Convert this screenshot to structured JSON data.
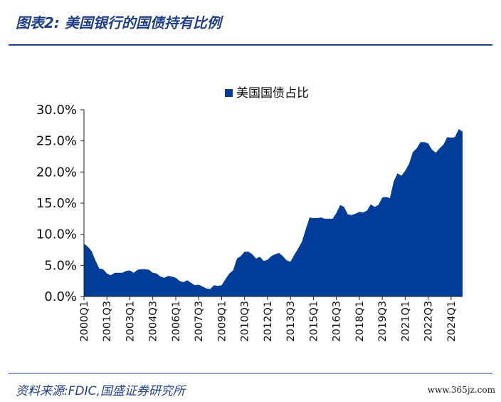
{
  "header": {
    "title": "图表2:  美国银行的国债持有比例"
  },
  "footer": {
    "source": "资料来源:FDIC,国盛证券研究所",
    "watermark": "www.365jz.com"
  },
  "colors": {
    "series": "#003d99",
    "accent": "#1f3f87"
  },
  "chart_data": {
    "type": "area",
    "title": "",
    "xlabel": "",
    "ylabel": "",
    "ylim": [
      0,
      30
    ],
    "y_format": "percent_1dp",
    "y_ticks": [
      "0.0%",
      "5.0%",
      "10.0%",
      "15.0%",
      "20.0%",
      "25.0%",
      "30.0%"
    ],
    "legend": "top-center",
    "grid": false,
    "x_tick_labels": [
      "2000Q1",
      "2001Q3",
      "2003Q1",
      "2004Q3",
      "2006Q1",
      "2007Q3",
      "2009Q1",
      "2010Q3",
      "2012Q1",
      "2013Q3",
      "2015Q1",
      "2016Q3",
      "2018Q1",
      "2019Q3",
      "2021Q1",
      "2022Q3",
      "2024Q1"
    ],
    "x_tick_every": 6,
    "series": [
      {
        "name": "美国国债占比",
        "values": [
          8.5,
          8.0,
          7.3,
          5.8,
          4.5,
          4.4,
          3.7,
          3.4,
          3.8,
          3.8,
          3.8,
          4.1,
          4.2,
          3.8,
          4.3,
          4.4,
          4.4,
          4.3,
          3.8,
          3.7,
          3.2,
          3.0,
          3.3,
          3.2,
          3.0,
          2.5,
          2.3,
          2.6,
          2.2,
          1.8,
          1.9,
          1.6,
          1.3,
          1.2,
          1.8,
          1.7,
          1.8,
          2.8,
          3.7,
          4.2,
          6.1,
          6.5,
          7.2,
          7.2,
          6.8,
          6.1,
          6.4,
          5.7,
          5.9,
          6.5,
          6.8,
          7.0,
          6.5,
          5.8,
          5.6,
          6.7,
          7.7,
          8.8,
          10.8,
          12.7,
          12.6,
          12.6,
          12.7,
          12.5,
          12.5,
          12.5,
          13.4,
          14.7,
          14.4,
          13.2,
          13.1,
          13.3,
          13.6,
          13.5,
          13.8,
          14.8,
          14.4,
          14.7,
          15.9,
          16.0,
          15.8,
          18.5,
          19.8,
          19.4,
          20.2,
          21.3,
          23.2,
          23.8,
          24.8,
          24.8,
          24.6,
          23.6,
          23.1,
          23.8,
          24.4,
          25.6,
          25.5,
          25.6,
          26.9,
          26.5
        ]
      }
    ]
  }
}
